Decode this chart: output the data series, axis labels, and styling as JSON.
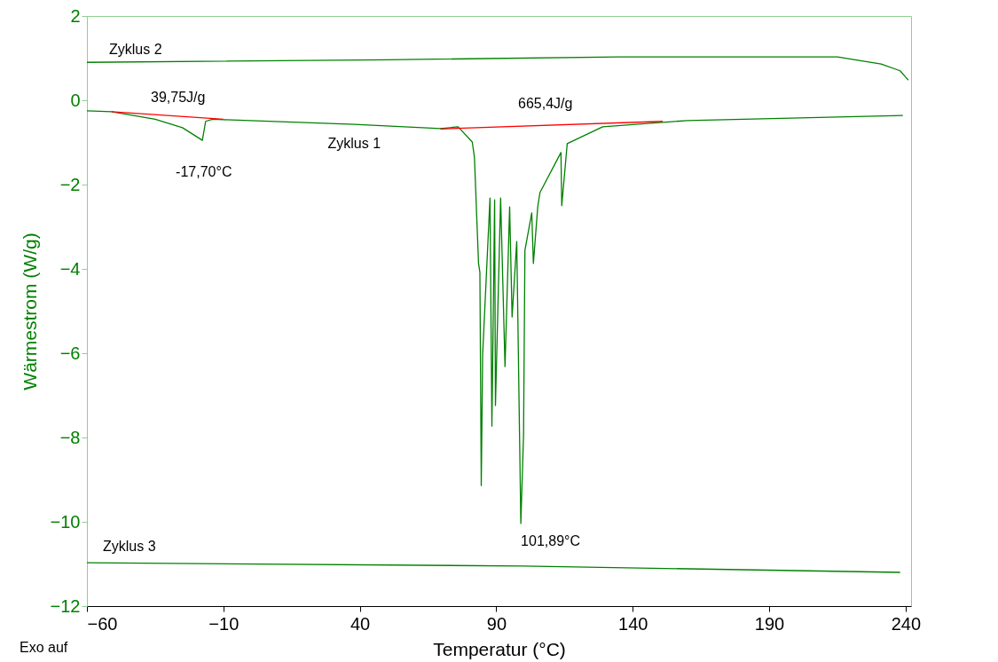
{
  "chart_data": {
    "type": "line",
    "xlabel": "Temperatur (°C)",
    "ylabel": "Wärmestrom (W/g)",
    "xlim": [
      -60,
      242
    ],
    "xticks": [
      -60,
      -10,
      40,
      90,
      140,
      190,
      240
    ],
    "ylim": [
      -12,
      2
    ],
    "yticks": [
      -12,
      -10,
      -8,
      -6,
      -4,
      -2,
      0,
      2
    ],
    "grid": false,
    "marker": "none",
    "line_style": "solid",
    "series": [
      {
        "name": "Zyklus 2",
        "color": "#008000",
        "x": [
          -60,
          50,
          135,
          215,
          231,
          238,
          240,
          241
        ],
        "values": [
          0.9,
          0.96,
          1.03,
          1.03,
          0.86,
          0.7,
          0.55,
          0.48
        ]
      },
      {
        "name": "Zyklus 1",
        "color": "#008000",
        "x": [
          -60,
          -51,
          -35,
          -25,
          -17.7,
          -16.5,
          -14,
          -10,
          38,
          69.5,
          76,
          81.2,
          82,
          83.5,
          84,
          84.5,
          85,
          87.7,
          88.4,
          89.4,
          89.7,
          91.6,
          93.2,
          94.9,
          95.8,
          97.5,
          99,
          100,
          100.5,
          103,
          103.6,
          105.2,
          106,
          113.7,
          114,
          116,
          129,
          160,
          239
        ],
        "values": [
          -0.25,
          -0.27,
          -0.45,
          -0.65,
          -0.95,
          -0.5,
          -0.45,
          -0.46,
          -0.57,
          -0.67,
          -0.63,
          -0.99,
          -1.35,
          -3.87,
          -4.08,
          -9.14,
          -6.04,
          -2.32,
          -7.73,
          -2.36,
          -7.24,
          -2.32,
          -6.32,
          -2.53,
          -5.14,
          -3.35,
          -10.04,
          -7.94,
          -3.56,
          -2.67,
          -3.87,
          -2.53,
          -2.19,
          -1.24,
          -2.5,
          -1.03,
          -0.63,
          -0.48,
          -0.36
        ]
      },
      {
        "color": "#ff0000",
        "x": [
          -51,
          -10
        ],
        "values": [
          -0.27,
          -0.45
        ]
      },
      {
        "color": "#ff0000",
        "x": [
          69.5,
          151
        ],
        "values": [
          -0.68,
          -0.5
        ]
      },
      {
        "name": "Zyklus 3",
        "color": "#008000",
        "x": [
          -60,
          100,
          238
        ],
        "values": [
          -10.97,
          -11.05,
          -11.2
        ]
      }
    ],
    "annotations": [
      "39,75J/g",
      {
        "text": "-17,70°C",
        "x": -17.7,
        "y": -0.95
      },
      "665,4J/g",
      {
        "text": "101,89°C",
        "x": 99,
        "y": -10.04
      },
      "Exo auf"
    ]
  }
}
